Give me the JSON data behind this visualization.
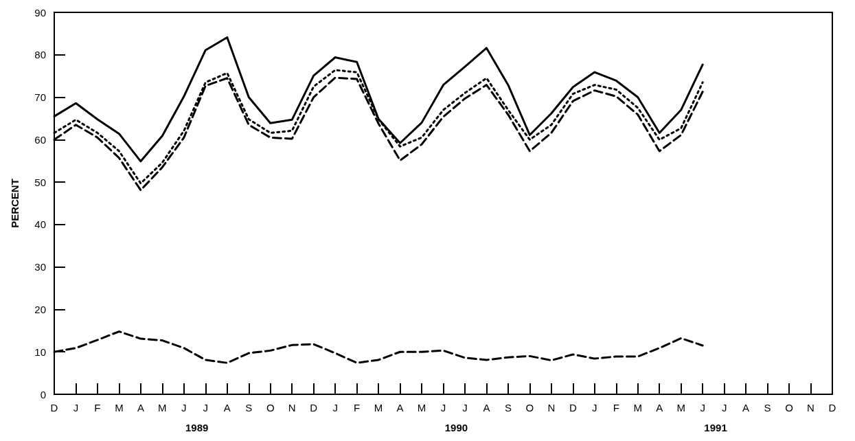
{
  "chart_data": {
    "type": "line",
    "ylabel": "PERCENT",
    "categories": [
      "D",
      "J",
      "F",
      "M",
      "A",
      "M",
      "J",
      "J",
      "A",
      "S",
      "O",
      "N",
      "D",
      "J",
      "F",
      "M",
      "A",
      "M",
      "J",
      "J",
      "A",
      "S",
      "O",
      "N",
      "D",
      "J",
      "F",
      "M",
      "A",
      "M",
      "J",
      "J",
      "A",
      "S",
      "O",
      "N",
      "D"
    ],
    "ylim": [
      0,
      90
    ],
    "yticks": [
      0,
      10,
      20,
      30,
      40,
      50,
      60,
      70,
      80,
      90
    ],
    "grid": false,
    "marker": "none",
    "series": [
      {
        "color": "#000000",
        "line_style": "solid",
        "values": [
          65.5,
          68.6,
          64.8,
          61.4,
          54.9,
          60.9,
          70.2,
          81.1,
          84.1,
          70.0,
          63.9,
          64.7,
          75.1,
          79.4,
          78.3,
          64.9,
          59.2,
          64.0,
          72.9,
          77.2,
          81.6,
          72.9,
          61.1,
          66.2,
          72.4,
          75.9,
          73.9,
          70.0,
          61.6,
          67.0,
          77.7,
          null,
          null,
          null,
          null,
          null,
          null
        ]
      },
      {
        "color": "#000000",
        "line_style": "dotted",
        "values": [
          61.6,
          64.7,
          61.6,
          57.3,
          49.7,
          54.6,
          62.1,
          73.5,
          75.7,
          64.8,
          61.6,
          62.1,
          72.5,
          76.4,
          75.9,
          64.8,
          58.4,
          60.5,
          67.0,
          71.0,
          74.5,
          67.0,
          60.0,
          63.5,
          70.8,
          72.9,
          71.8,
          67.5,
          60.0,
          62.7,
          73.5,
          null,
          null,
          null,
          null,
          null,
          null
        ]
      },
      {
        "color": "#000000",
        "line_style": "dashed",
        "values": [
          60.0,
          63.5,
          60.5,
          55.7,
          48.1,
          53.5,
          60.5,
          72.7,
          74.5,
          63.5,
          60.5,
          60.2,
          70.0,
          74.6,
          74.3,
          63.8,
          55.1,
          58.9,
          65.4,
          69.7,
          72.9,
          65.9,
          57.3,
          61.6,
          69.1,
          71.6,
          70.2,
          65.9,
          57.3,
          61.1,
          71.3,
          null,
          null,
          null,
          null,
          null,
          null
        ]
      },
      {
        "color": "#000000",
        "line_style": "dashed",
        "values": [
          10.0,
          10.9,
          12.8,
          14.8,
          13.1,
          12.7,
          10.9,
          8.1,
          7.4,
          9.7,
          10.3,
          11.6,
          11.8,
          9.7,
          7.4,
          8.1,
          10.0,
          10.0,
          10.3,
          8.6,
          8.1,
          8.7,
          9.0,
          8.0,
          9.4,
          8.4,
          8.9,
          8.9,
          10.9,
          13.2,
          11.5,
          null,
          null,
          null,
          null,
          null,
          null
        ]
      }
    ],
    "annotations": [
      "1989",
      "1990",
      "1991"
    ]
  }
}
